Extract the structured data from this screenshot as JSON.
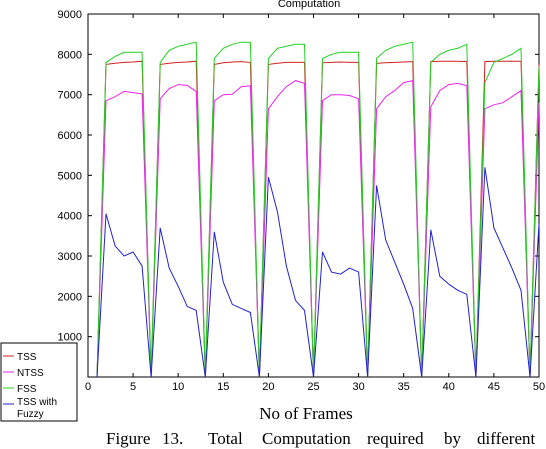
{
  "chart_data": {
    "type": "line",
    "title": "Computation",
    "xlabel": "No of Frames",
    "ylabel": "",
    "xlim": [
      0,
      50
    ],
    "ylim": [
      0,
      9000
    ],
    "x_ticks": [
      0,
      5,
      10,
      15,
      20,
      25,
      30,
      35,
      40,
      45,
      50
    ],
    "y_ticks": [
      1000,
      2000,
      3000,
      4000,
      5000,
      6000,
      7000,
      8000,
      9000
    ],
    "grid": false,
    "legend_position": "bottom-left",
    "x": [
      1,
      2,
      3,
      4,
      5,
      6,
      7,
      8,
      9,
      10,
      11,
      12,
      13,
      14,
      15,
      16,
      17,
      18,
      19,
      20,
      21,
      22,
      23,
      24,
      25,
      26,
      27,
      28,
      29,
      30,
      31,
      32,
      33,
      34,
      35,
      36,
      37,
      38,
      39,
      40,
      41,
      42,
      43,
      44,
      45,
      46,
      47,
      48,
      49,
      50
    ],
    "series": [
      {
        "name": "TSS",
        "color": "#d42020",
        "values": [
          0,
          7750,
          7780,
          7800,
          7810,
          7830,
          0,
          7750,
          7780,
          7800,
          7810,
          7830,
          0,
          7750,
          7790,
          7810,
          7820,
          7800,
          0,
          7750,
          7780,
          7800,
          7800,
          7800,
          0,
          7790,
          7800,
          7810,
          7800,
          7800,
          0,
          7780,
          7790,
          7800,
          7810,
          7820,
          0,
          7820,
          7830,
          7830,
          7830,
          7820,
          0,
          7820,
          7830,
          7830,
          7830,
          7830,
          0,
          7750
        ]
      },
      {
        "name": "NTSS",
        "color": "#ee22ee",
        "values": [
          0,
          6850,
          6950,
          7080,
          7050,
          7020,
          0,
          6900,
          7150,
          7250,
          7230,
          7080,
          0,
          6850,
          7000,
          7010,
          7200,
          7220,
          0,
          6650,
          6950,
          7200,
          7350,
          7280,
          0,
          6850,
          7000,
          7000,
          6980,
          6900,
          0,
          6650,
          6950,
          7100,
          7300,
          7350,
          0,
          6700,
          7100,
          7250,
          7280,
          7220,
          0,
          6650,
          6750,
          6800,
          6950,
          7100,
          0,
          6800
        ]
      },
      {
        "name": "FSS",
        "color": "#22d022",
        "values": [
          0,
          7800,
          7950,
          8050,
          8050,
          8050,
          0,
          7800,
          8100,
          8200,
          8250,
          8300,
          0,
          7900,
          8150,
          8250,
          8300,
          8300,
          0,
          7900,
          8150,
          8200,
          8250,
          8250,
          0,
          7900,
          8000,
          8050,
          8050,
          8050,
          0,
          7900,
          8100,
          8200,
          8250,
          8300,
          0,
          7800,
          8000,
          8100,
          8150,
          8250,
          0,
          7300,
          7800,
          7900,
          8000,
          8150,
          0,
          7700
        ]
      },
      {
        "name": "TSS with Fuzzy",
        "color": "#2222cc",
        "values": [
          0,
          4050,
          3250,
          3000,
          3100,
          2750,
          0,
          3700,
          2700,
          2250,
          1750,
          1650,
          0,
          3600,
          2350,
          1800,
          1700,
          1600,
          0,
          4950,
          4100,
          2750,
          1900,
          1650,
          0,
          3100,
          2600,
          2550,
          2700,
          2600,
          0,
          4750,
          3400,
          2850,
          2300,
          1700,
          0,
          3650,
          2500,
          2300,
          2150,
          2050,
          0,
          5200,
          3700,
          3200,
          2700,
          2150,
          0,
          3800
        ]
      }
    ]
  },
  "legend": {
    "items": [
      {
        "label": "TSS",
        "color": "#d42020"
      },
      {
        "label": "NTSS",
        "color": "#ee22ee"
      },
      {
        "label": "FSS",
        "color": "#22d022"
      },
      {
        "label": "TSS with",
        "label2": "Fuzzy",
        "color": "#2222cc"
      }
    ]
  },
  "caption": {
    "left": "Figure",
    "number": "13.",
    "w1": "Total",
    "w2": "Computation",
    "w3": "required",
    "w4": "by",
    "w5": "different"
  }
}
